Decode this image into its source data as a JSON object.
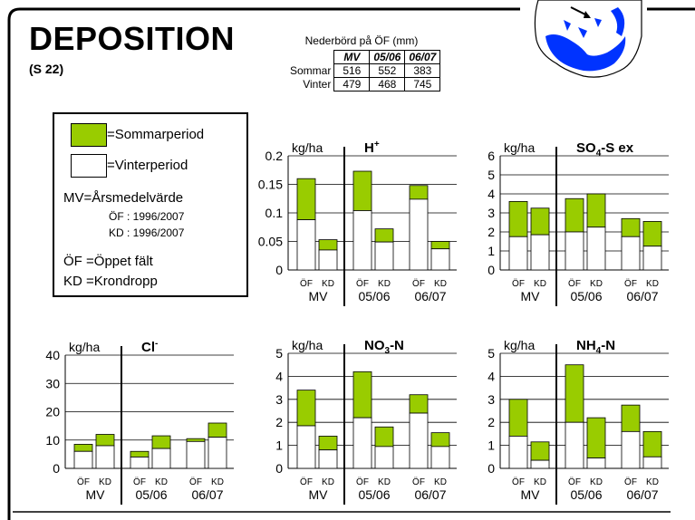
{
  "header": {
    "title": "DEPOSITION",
    "subtitle": "(S 22)"
  },
  "precip_table": {
    "caption": "Nederbörd på ÖF (mm)",
    "columns": [
      "MV",
      "05/06",
      "06/07"
    ],
    "rows": [
      {
        "label": "Sommar",
        "values": [
          "516",
          "552",
          "383"
        ]
      },
      {
        "label": "Vinter",
        "values": [
          "479",
          "468",
          "745"
        ]
      }
    ]
  },
  "legend": {
    "summer": "=Sommarperiod",
    "winter": "=Vinterperiod",
    "mv_key": "MV",
    "mv_desc": "=Årsmedelvärde",
    "of_period": "ÖF : 1996/2007",
    "kd_period": "KD : 1996/2007",
    "of_key": "ÖF",
    "of_desc": "=Öppet fält",
    "kd_key": "KD",
    "kd_desc": "=Krondropp"
  },
  "colors": {
    "summer": "#99cc00",
    "winter": "#ffffff",
    "map_land": "#ffffff",
    "map_water": "#0033ff"
  },
  "chart_data": [
    {
      "type": "bar",
      "unit": "kg/ha",
      "title": "H",
      "title_sup": "+",
      "groups": [
        "MV",
        "05/06",
        "06/07"
      ],
      "bar_labels": [
        "ÖF",
        "KD"
      ],
      "ylim": [
        0,
        0.2
      ],
      "yticks": [
        "0",
        "0.05",
        "0.1",
        "0.15",
        "0.2"
      ],
      "yticks_val": [
        0,
        0.05,
        0.1,
        0.15,
        0.2
      ],
      "series": [
        {
          "name": "Vinterperiod",
          "values": [
            0.088,
            0.035,
            0.104,
            0.049,
            0.124,
            0.037
          ]
        },
        {
          "name": "Sommarperiod",
          "values": [
            0.072,
            0.018,
            0.069,
            0.023,
            0.024,
            0.013
          ]
        }
      ]
    },
    {
      "type": "bar",
      "unit": "kg/ha",
      "title": "SO",
      "title_sub": "4",
      "title_tail": "-S ex",
      "groups": [
        "MV",
        "05/06",
        "06/07"
      ],
      "bar_labels": [
        "ÖF",
        "KD"
      ],
      "ylim": [
        0,
        6
      ],
      "yticks": [
        "0",
        "1",
        "2",
        "3",
        "4",
        "5",
        "6"
      ],
      "yticks_val": [
        0,
        1,
        2,
        3,
        4,
        5,
        6
      ],
      "series": [
        {
          "name": "Vinterperiod",
          "values": [
            1.75,
            1.85,
            2.0,
            2.25,
            1.75,
            1.25
          ]
        },
        {
          "name": "Sommarperiod",
          "values": [
            1.85,
            1.4,
            1.75,
            1.75,
            0.95,
            1.3
          ]
        }
      ]
    },
    {
      "type": "bar",
      "unit": "kg/ha",
      "title": "Cl",
      "title_sup": "-",
      "groups": [
        "MV",
        "05/06",
        "06/07"
      ],
      "bar_labels": [
        "ÖF",
        "KD"
      ],
      "ylim": [
        0,
        40
      ],
      "yticks": [
        "0",
        "10",
        "20",
        "30",
        "40"
      ],
      "yticks_val": [
        0,
        10,
        20,
        30,
        40
      ],
      "series": [
        {
          "name": "Vinterperiod",
          "values": [
            6.0,
            8.0,
            4.0,
            7.0,
            9.5,
            11.0
          ]
        },
        {
          "name": "Sommarperiod",
          "values": [
            2.5,
            4.0,
            2.0,
            4.5,
            1.0,
            5.0
          ]
        }
      ]
    },
    {
      "type": "bar",
      "unit": "kg/ha",
      "title": "NO",
      "title_sub": "3",
      "title_tail": "-N",
      "groups": [
        "MV",
        "05/06",
        "06/07"
      ],
      "bar_labels": [
        "ÖF",
        "KD"
      ],
      "ylim": [
        0,
        5
      ],
      "yticks": [
        "0",
        "1",
        "2",
        "3",
        "4",
        "5"
      ],
      "yticks_val": [
        0,
        1,
        2,
        3,
        4,
        5
      ],
      "series": [
        {
          "name": "Vinterperiod",
          "values": [
            1.85,
            0.8,
            2.2,
            0.95,
            2.4,
            0.95
          ]
        },
        {
          "name": "Sommarperiod",
          "values": [
            1.55,
            0.6,
            2.0,
            0.85,
            0.8,
            0.6
          ]
        }
      ]
    },
    {
      "type": "bar",
      "unit": "kg/ha",
      "title": "NH",
      "title_sub": "4",
      "title_tail": "-N",
      "groups": [
        "MV",
        "05/06",
        "06/07"
      ],
      "bar_labels": [
        "ÖF",
        "KD"
      ],
      "ylim": [
        0,
        5
      ],
      "yticks": [
        "0",
        "1",
        "2",
        "3",
        "4",
        "5"
      ],
      "yticks_val": [
        0,
        1,
        2,
        3,
        4,
        5
      ],
      "series": [
        {
          "name": "Vinterperiod",
          "values": [
            1.4,
            0.35,
            2.0,
            0.45,
            1.6,
            0.5
          ]
        },
        {
          "name": "Sommarperiod",
          "values": [
            1.6,
            0.8,
            2.5,
            1.75,
            1.15,
            1.1
          ]
        }
      ]
    }
  ]
}
